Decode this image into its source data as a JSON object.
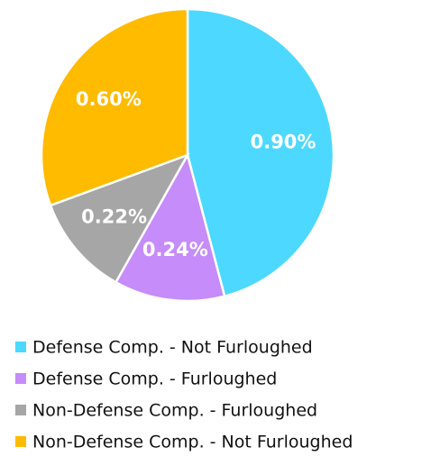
{
  "chart_data": {
    "type": "pie",
    "categories": [
      "Defense Comp. - Not Furloughed",
      "Defense Comp. - Furloughed",
      "Non-Defense Comp. - Furloughed",
      "Non-Defense Comp. - Not Furloughed"
    ],
    "values": [
      0.9,
      0.24,
      0.22,
      0.6
    ],
    "value_labels": [
      "0.90%",
      "0.24%",
      "0.22%",
      "0.60%"
    ],
    "colors": [
      "#4dd9ff",
      "#c68cfa",
      "#a6a6a6",
      "#ffbb00"
    ],
    "legend": "bottom"
  }
}
